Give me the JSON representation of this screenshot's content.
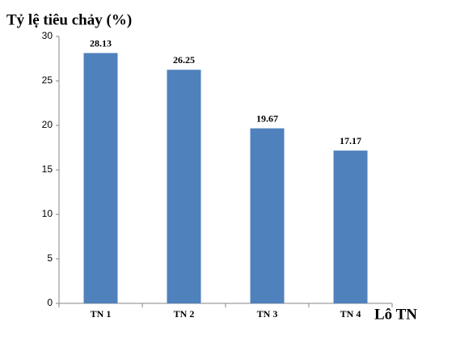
{
  "chart_data": {
    "type": "bar",
    "y_label": "Tỷ lệ tiêu chảy (%)",
    "x_label": "Lô TN",
    "categories": [
      "TN 1",
      "TN 2",
      "TN 3",
      "TN 4"
    ],
    "values": [
      28.13,
      26.25,
      19.67,
      17.17
    ],
    "color": "#4f81bd",
    "ylim": [
      0,
      30
    ],
    "yticks": [
      0,
      5,
      10,
      15,
      20,
      25,
      30
    ],
    "grid": false
  }
}
